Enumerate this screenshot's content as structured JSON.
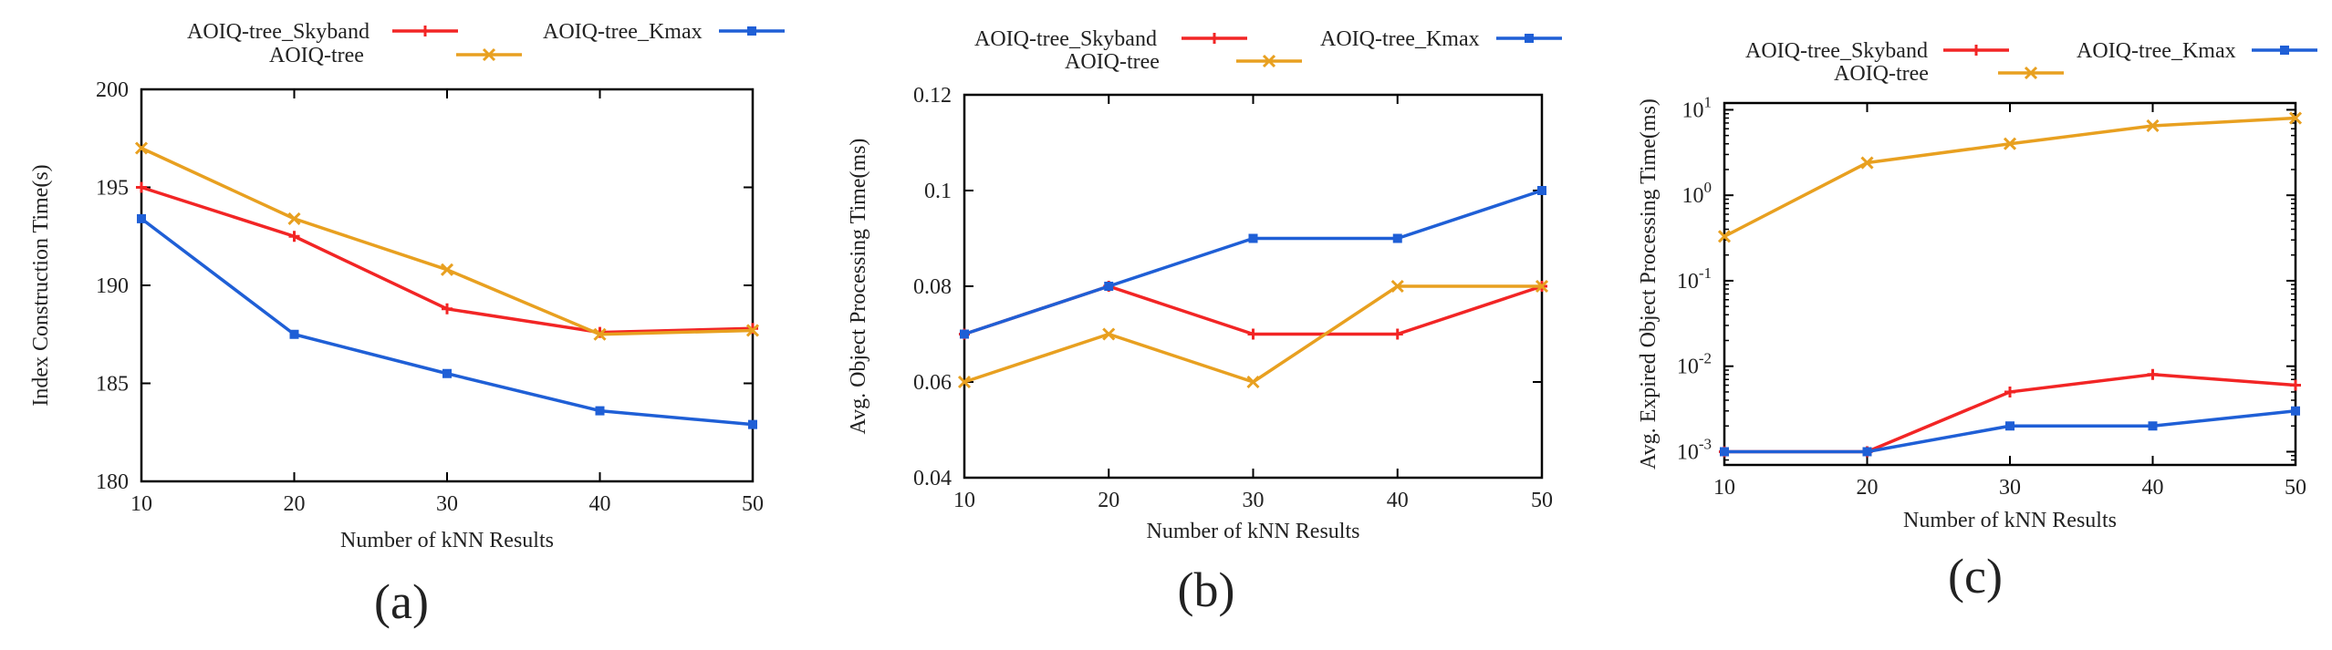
{
  "figure": {
    "panel_labels": [
      "(a)",
      "(b)",
      "(c)"
    ]
  },
  "colors": {
    "skyband": "#f22525",
    "aoiq": "#e8a020",
    "kmax": "#1f5fd6",
    "axis": "#000000"
  },
  "chart_data": [
    {
      "type": "line",
      "panel": "(a)",
      "title": "",
      "xlabel": "Number of kNN Results",
      "ylabel": "Index Construction Time(s)",
      "x": [
        10,
        20,
        30,
        40,
        50
      ],
      "xlim": [
        10,
        50
      ],
      "ylim": [
        180,
        200
      ],
      "yscale": "linear",
      "yticks": [
        180,
        185,
        190,
        195,
        200
      ],
      "ytick_labels": [
        "180",
        "185",
        "190",
        "195",
        "200"
      ],
      "xtick_labels": [
        "10",
        "20",
        "30",
        "40",
        "50"
      ],
      "series": [
        {
          "name": "AOIQ-tree_Skyband",
          "color": "#f22525",
          "marker": "plus",
          "values": [
            195.0,
            192.5,
            188.8,
            187.6,
            187.8
          ]
        },
        {
          "name": "AOIQ-tree",
          "color": "#e8a020",
          "marker": "x",
          "values": [
            197.0,
            193.4,
            190.8,
            187.5,
            187.7
          ]
        },
        {
          "name": "AOIQ-tree_Kmax",
          "color": "#1f5fd6",
          "marker": "square",
          "values": [
            193.4,
            187.5,
            185.5,
            183.6,
            182.9
          ]
        }
      ],
      "legend": "top"
    },
    {
      "type": "line",
      "panel": "(b)",
      "title": "",
      "xlabel": "Number of kNN Results",
      "ylabel": "Avg. Object Processing Time(ms)",
      "x": [
        10,
        20,
        30,
        40,
        50
      ],
      "xlim": [
        10,
        50
      ],
      "ylim": [
        0.04,
        0.12
      ],
      "yscale": "linear",
      "yticks": [
        0.04,
        0.06,
        0.08,
        0.1,
        0.12
      ],
      "ytick_labels": [
        "0.04",
        "0.06",
        "0.08",
        "0.1",
        "0.12"
      ],
      "xtick_labels": [
        "10",
        "20",
        "30",
        "40",
        "50"
      ],
      "series": [
        {
          "name": "AOIQ-tree_Skyband",
          "color": "#f22525",
          "marker": "plus",
          "values": [
            0.07,
            0.08,
            0.07,
            0.07,
            0.08
          ]
        },
        {
          "name": "AOIQ-tree",
          "color": "#e8a020",
          "marker": "x",
          "values": [
            0.06,
            0.07,
            0.06,
            0.08,
            0.08
          ]
        },
        {
          "name": "AOIQ-tree_Kmax",
          "color": "#1f5fd6",
          "marker": "square",
          "values": [
            0.07,
            0.08,
            0.09,
            0.09,
            0.1
          ]
        }
      ],
      "legend": "top"
    },
    {
      "type": "line",
      "panel": "(c)",
      "title": "",
      "xlabel": "Number of kNN Results",
      "ylabel": "Avg. Expired Object Processing Time(ms)",
      "x": [
        10,
        20,
        30,
        40,
        50
      ],
      "xlim": [
        10,
        50
      ],
      "ylim": [
        0.0007,
        12
      ],
      "yscale": "log",
      "yticks": [
        0.001,
        0.01,
        0.1,
        1,
        10
      ],
      "ytick_labels": [
        {
          "base": "10",
          "exp": "-3"
        },
        {
          "base": "10",
          "exp": "-2"
        },
        {
          "base": "10",
          "exp": "-1"
        },
        {
          "base": "10",
          "exp": "0"
        },
        {
          "base": "10",
          "exp": "1"
        }
      ],
      "xtick_labels": [
        "10",
        "20",
        "30",
        "40",
        "50"
      ],
      "series": [
        {
          "name": "AOIQ-tree_Skyband",
          "color": "#f22525",
          "marker": "plus",
          "values": [
            0.001,
            0.001,
            0.005,
            0.008,
            0.006
          ]
        },
        {
          "name": "AOIQ-tree",
          "color": "#e8a020",
          "marker": "x",
          "values": [
            0.33,
            2.4,
            4.0,
            6.5,
            8.0
          ]
        },
        {
          "name": "AOIQ-tree_Kmax",
          "color": "#1f5fd6",
          "marker": "square",
          "values": [
            0.001,
            0.001,
            0.002,
            0.002,
            0.003
          ]
        }
      ],
      "legend": "top"
    }
  ]
}
